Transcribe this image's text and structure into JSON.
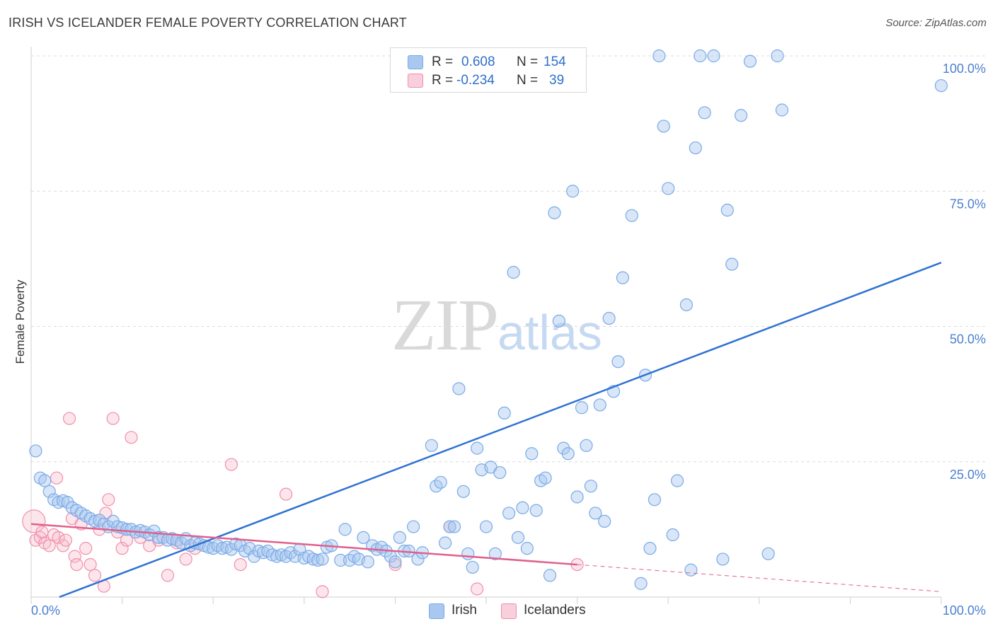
{
  "title": "IRISH VS ICELANDER FEMALE POVERTY CORRELATION CHART",
  "source": "Source: ZipAtlas.com",
  "watermark": {
    "zip": "ZIP",
    "atlas": "atlas"
  },
  "legend": {
    "rows": [
      {
        "r_label": "R =",
        "r_value": "0.608",
        "n_label": "N =",
        "n_value": "154",
        "color": "#a9c8f0"
      },
      {
        "r_label": "R =",
        "r_value": "-0.234",
        "n_label": "N =",
        "n_value": "39",
        "color": "#f5b8c9"
      }
    ]
  },
  "bottom_legend": [
    {
      "label": "Irish",
      "color": "#a9c8f0"
    },
    {
      "label": "Icelanders",
      "color": "#f5b8c9"
    }
  ],
  "chart_data": {
    "type": "scatter",
    "title": "IRISH VS ICELANDER FEMALE POVERTY CORRELATION CHART",
    "xlabel": "",
    "ylabel": "Female Poverty",
    "xlim": [
      0,
      100
    ],
    "ylim": [
      0,
      100
    ],
    "x_tick_labels": [
      "0.0%",
      "100.0%"
    ],
    "y_ticks": [
      {
        "value": 25,
        "label": "25.0%"
      },
      {
        "value": 50,
        "label": "50.0%"
      },
      {
        "value": 75,
        "label": "75.0%"
      },
      {
        "value": 100,
        "label": "100.0%"
      }
    ],
    "grid": true,
    "legend_position": "top-center",
    "series": [
      {
        "name": "Irish",
        "color": "#7aaae6",
        "trend": {
          "x": [
            3.1,
            100
          ],
          "y": [
            0,
            61.8
          ],
          "color": "#2f72d3"
        },
        "points": [
          [
            0.5,
            27
          ],
          [
            1,
            22
          ],
          [
            1.5,
            21.5
          ],
          [
            2,
            19.5
          ],
          [
            2.5,
            18
          ],
          [
            3,
            17.5
          ],
          [
            3.5,
            17.8
          ],
          [
            4,
            17.5
          ],
          [
            4.5,
            16.5
          ],
          [
            5,
            16
          ],
          [
            5.5,
            15.5
          ],
          [
            6,
            15
          ],
          [
            6.5,
            14.5
          ],
          [
            7,
            14
          ],
          [
            7.5,
            14.2
          ],
          [
            8,
            13.5
          ],
          [
            8.5,
            13
          ],
          [
            9,
            14
          ],
          [
            9.5,
            13
          ],
          [
            10,
            12.8
          ],
          [
            10.5,
            12.5
          ],
          [
            11,
            12.5
          ],
          [
            11.5,
            12
          ],
          [
            12,
            12.3
          ],
          [
            12.5,
            12
          ],
          [
            13,
            11.5
          ],
          [
            13.5,
            12.2
          ],
          [
            14,
            11
          ],
          [
            14.5,
            11
          ],
          [
            15,
            10.5
          ],
          [
            15.5,
            10.8
          ],
          [
            16,
            10.5
          ],
          [
            16.5,
            10
          ],
          [
            17,
            10.8
          ],
          [
            17.5,
            9.5
          ],
          [
            18,
            10
          ],
          [
            18.5,
            9.8
          ],
          [
            19,
            9.5
          ],
          [
            19.5,
            9.2
          ],
          [
            20,
            9
          ],
          [
            20.5,
            9.5
          ],
          [
            21,
            9
          ],
          [
            21.5,
            9.2
          ],
          [
            22,
            8.8
          ],
          [
            22.5,
            9.8
          ],
          [
            23,
            9.5
          ],
          [
            23.5,
            8.5
          ],
          [
            24,
            9
          ],
          [
            24.5,
            7.5
          ],
          [
            25,
            8.5
          ],
          [
            25.5,
            8.2
          ],
          [
            26,
            8.5
          ],
          [
            26.5,
            7.8
          ],
          [
            27,
            7.5
          ],
          [
            27.5,
            7.8
          ],
          [
            28,
            7.5
          ],
          [
            28.5,
            8.2
          ],
          [
            29,
            7.5
          ],
          [
            29.5,
            8.8
          ],
          [
            30,
            7.2
          ],
          [
            30.5,
            7.5
          ],
          [
            31,
            7
          ],
          [
            31.5,
            6.8
          ],
          [
            32,
            7
          ],
          [
            32.5,
            9.2
          ],
          [
            33,
            9.5
          ],
          [
            34,
            6.8
          ],
          [
            34.5,
            12.5
          ],
          [
            35,
            6.8
          ],
          [
            35.5,
            7.5
          ],
          [
            36,
            7
          ],
          [
            36.5,
            11
          ],
          [
            37,
            6.5
          ],
          [
            37.5,
            9.5
          ],
          [
            38,
            8.8
          ],
          [
            38.5,
            9.2
          ],
          [
            39,
            8.5
          ],
          [
            39.5,
            7.5
          ],
          [
            40,
            6.5
          ],
          [
            40.5,
            11
          ],
          [
            41,
            8.5
          ],
          [
            41.5,
            8.5
          ],
          [
            42,
            13
          ],
          [
            42.5,
            7
          ],
          [
            43,
            8.2
          ],
          [
            44,
            28
          ],
          [
            44.5,
            20.5
          ],
          [
            45,
            21.2
          ],
          [
            45.5,
            10
          ],
          [
            46,
            13
          ],
          [
            46.5,
            13
          ],
          [
            47,
            38.5
          ],
          [
            47.5,
            19.5
          ],
          [
            48,
            8
          ],
          [
            48.5,
            5.5
          ],
          [
            49,
            27.5
          ],
          [
            49.5,
            23.5
          ],
          [
            50,
            13
          ],
          [
            50.5,
            24
          ],
          [
            51,
            8
          ],
          [
            51.5,
            23
          ],
          [
            52,
            34
          ],
          [
            52.5,
            15.5
          ],
          [
            53,
            60
          ],
          [
            53.5,
            11
          ],
          [
            54,
            16.5
          ],
          [
            54.5,
            9
          ],
          [
            55,
            26.5
          ],
          [
            55.5,
            16
          ],
          [
            56,
            21.5
          ],
          [
            56.5,
            22
          ],
          [
            57,
            4
          ],
          [
            57.5,
            71
          ],
          [
            58,
            51
          ],
          [
            58.5,
            27.5
          ],
          [
            59,
            26.5
          ],
          [
            59.5,
            75
          ],
          [
            60,
            18.5
          ],
          [
            60.5,
            35
          ],
          [
            61,
            28
          ],
          [
            61.5,
            20.5
          ],
          [
            62,
            15.5
          ],
          [
            62.5,
            35.5
          ],
          [
            63,
            14
          ],
          [
            63.5,
            51.5
          ],
          [
            64,
            38
          ],
          [
            64.5,
            43.5
          ],
          [
            65,
            59
          ],
          [
            66,
            70.5
          ],
          [
            67,
            2.5
          ],
          [
            67.5,
            41
          ],
          [
            68,
            9
          ],
          [
            68.5,
            18
          ],
          [
            69,
            100
          ],
          [
            69.5,
            87
          ],
          [
            70,
            75.5
          ],
          [
            70.5,
            11.5
          ],
          [
            71,
            21.5
          ],
          [
            72,
            54
          ],
          [
            72.5,
            5
          ],
          [
            73,
            83
          ],
          [
            73.5,
            100
          ],
          [
            74,
            89.5
          ],
          [
            75,
            100
          ],
          [
            76,
            7
          ],
          [
            76.5,
            71.5
          ],
          [
            77,
            61.5
          ],
          [
            78,
            89
          ],
          [
            79,
            99
          ],
          [
            81,
            8
          ],
          [
            82,
            100
          ],
          [
            82.5,
            90
          ],
          [
            100,
            94.5
          ]
        ]
      },
      {
        "name": "Icelanders",
        "color": "#f08fab",
        "trend": {
          "x": [
            0,
            60
          ],
          "y": [
            13.5,
            6
          ],
          "color": "#e0608d"
        },
        "trend_extension": {
          "x": [
            60,
            100
          ],
          "y": [
            6,
            1
          ]
        },
        "points": [
          [
            0.3,
            14
          ],
          [
            0.5,
            10.5
          ],
          [
            1,
            11
          ],
          [
            1.2,
            12
          ],
          [
            1.5,
            10
          ],
          [
            2,
            9.5
          ],
          [
            2.5,
            11.5
          ],
          [
            2.8,
            22
          ],
          [
            3,
            11
          ],
          [
            3.5,
            9.5
          ],
          [
            3.8,
            10.5
          ],
          [
            4.2,
            33
          ],
          [
            4.5,
            14.5
          ],
          [
            4.8,
            7.5
          ],
          [
            5,
            6
          ],
          [
            5.5,
            13.5
          ],
          [
            6,
            9
          ],
          [
            6.5,
            6
          ],
          [
            7,
            4
          ],
          [
            7.5,
            12.5
          ],
          [
            8,
            2
          ],
          [
            8.2,
            15.5
          ],
          [
            8.5,
            18
          ],
          [
            9,
            33
          ],
          [
            9.5,
            12
          ],
          [
            10,
            9
          ],
          [
            10.5,
            10.5
          ],
          [
            11,
            29.5
          ],
          [
            12,
            11
          ],
          [
            13,
            9.5
          ],
          [
            14,
            10.5
          ],
          [
            15,
            4
          ],
          [
            16,
            10
          ],
          [
            17,
            7
          ],
          [
            18,
            9
          ],
          [
            22,
            24.5
          ],
          [
            23,
            6
          ],
          [
            28,
            19
          ],
          [
            32,
            1
          ],
          [
            40,
            6
          ],
          [
            46,
            13
          ],
          [
            49,
            1.5
          ],
          [
            60,
            6
          ]
        ]
      }
    ]
  }
}
